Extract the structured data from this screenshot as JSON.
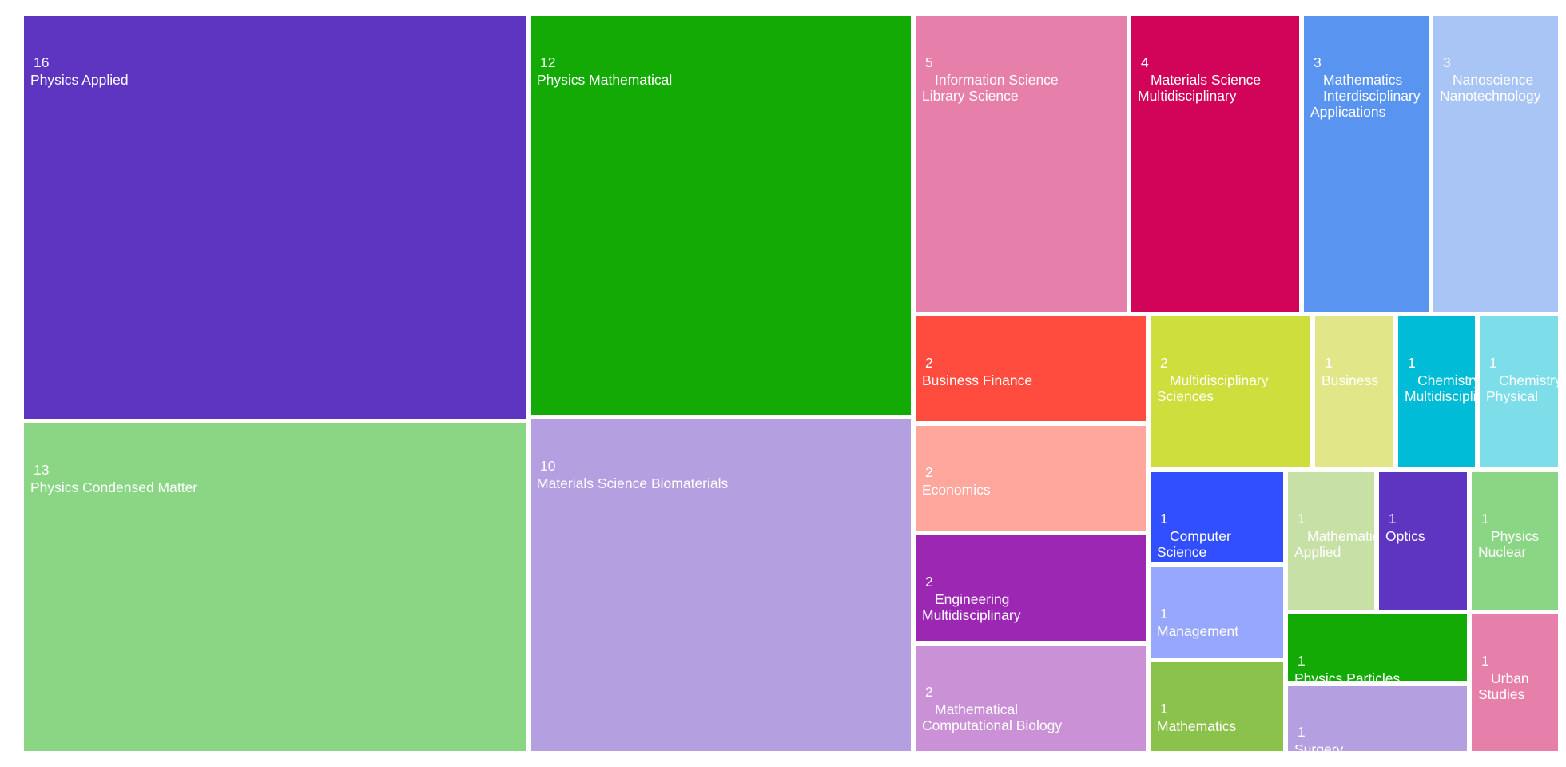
{
  "chart_data": {
    "type": "treemap",
    "items": [
      {
        "value": 16,
        "label": [
          "Physics Applied"
        ],
        "color": "#5e35c1"
      },
      {
        "value": 13,
        "label": [
          "Physics Condensed Matter"
        ],
        "color": "#8bd685"
      },
      {
        "value": 12,
        "label": [
          "Physics Mathematical"
        ],
        "color": "#13aa05"
      },
      {
        "value": 10,
        "label": [
          "Materials Science Biomaterials"
        ],
        "color": "#b49fe0"
      },
      {
        "value": 5,
        "label": [
          "Information Science",
          "Library Science"
        ],
        "color": "#e680ab"
      },
      {
        "value": 4,
        "label": [
          "Materials Science",
          "Multidisciplinary"
        ],
        "color": "#d10459"
      },
      {
        "value": 3,
        "label": [
          "Mathematics",
          "Interdisciplinary",
          "Applications"
        ],
        "color": "#5994f1"
      },
      {
        "value": 3,
        "label": [
          "Nanoscience",
          "Nanotechnology"
        ],
        "color": "#a9c5f6"
      },
      {
        "value": 2,
        "label": [
          "Business Finance"
        ],
        "color": "#ff4c3f"
      },
      {
        "value": 2,
        "label": [
          "Economics"
        ],
        "color": "#ffa69d"
      },
      {
        "value": 2,
        "label": [
          "Engineering",
          "Multidisciplinary"
        ],
        "color": "#9b27b3"
      },
      {
        "value": 2,
        "label": [
          "Mathematical",
          "Computational Biology"
        ],
        "color": "#cb91d6"
      },
      {
        "value": 2,
        "label": [
          "Multidisciplinary",
          "Sciences"
        ],
        "color": "#cede3c"
      },
      {
        "value": 1,
        "label": [
          "Business"
        ],
        "color": "#e1e789"
      },
      {
        "value": 1,
        "label": [
          "Chemistry",
          "Multidisciplinary"
        ],
        "color": "#00bcd6"
      },
      {
        "value": 1,
        "label": [
          "Chemistry",
          "Physical"
        ],
        "color": "#7ddeea"
      },
      {
        "value": 1,
        "label": [
          "Computer",
          "Science"
        ],
        "color": "#314fff"
      },
      {
        "value": 1,
        "label": [
          "Management"
        ],
        "color": "#97a7fd"
      },
      {
        "value": 1,
        "label": [
          "Mathematics"
        ],
        "color": "#8bc24b"
      },
      {
        "value": 1,
        "label": [
          "Mathematics",
          "Applied"
        ],
        "color": "#c6e0a5"
      },
      {
        "value": 1,
        "label": [
          "Optics"
        ],
        "color": "#5e35c1"
      },
      {
        "value": 1,
        "label": [
          "Physics",
          "Nuclear"
        ],
        "color": "#8bd685"
      },
      {
        "value": 1,
        "label": [
          "Physics Particles"
        ],
        "color": "#13aa05"
      },
      {
        "value": 1,
        "label": [
          "Surgery"
        ],
        "color": "#b49fe0"
      },
      {
        "value": 1,
        "label": [
          "Urban",
          "Studies"
        ],
        "color": "#e680ab"
      }
    ]
  }
}
